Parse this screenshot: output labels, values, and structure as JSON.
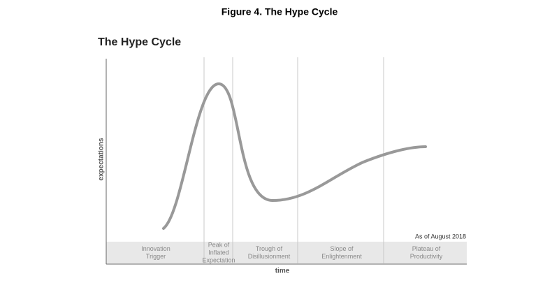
{
  "figure_title": "Figure 4. The Hype Cycle",
  "diagram_title": "The Hype Cycle",
  "y_axis_label": "expectations",
  "x_axis_label": "time",
  "note": "As of August 2018",
  "phases": [
    {
      "lines": [
        "Innovation",
        "Trigger"
      ]
    },
    {
      "lines": [
        "Peak of",
        "Inflated",
        "Expectation"
      ]
    },
    {
      "lines": [
        "Trough of",
        "Disillusionment"
      ]
    },
    {
      "lines": [
        "Slope of",
        "Enlightenment"
      ]
    },
    {
      "lines": [
        "Plateau of",
        "Productivity"
      ]
    }
  ]
}
